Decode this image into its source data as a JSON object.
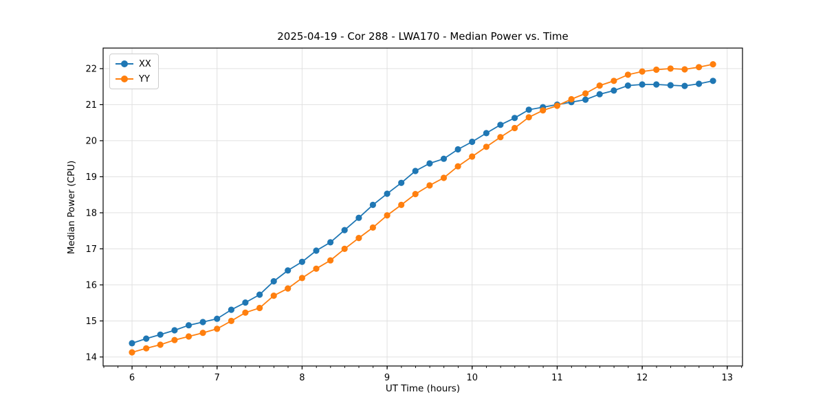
{
  "chart_data": {
    "type": "line",
    "title": "2025-04-19 - Cor 288 - LWA170 - Median Power vs. Time",
    "xlabel": "UT Time (hours)",
    "ylabel": "Median Power (CPU)",
    "xlim": [
      5.66,
      13.18
    ],
    "ylim": [
      13.75,
      22.57
    ],
    "xticks": [
      6,
      7,
      8,
      9,
      10,
      11,
      12,
      13
    ],
    "yticks": [
      14,
      15,
      16,
      17,
      18,
      19,
      20,
      21,
      22
    ],
    "x_minor_step": 0.1667,
    "grid": true,
    "legend_position": "upper left",
    "marker": "circle",
    "colors": {
      "grid": "#e0e0e0",
      "spine": "#000000",
      "tick_label": "#000000"
    },
    "x": [
      6.0,
      6.167,
      6.333,
      6.5,
      6.667,
      6.833,
      7.0,
      7.167,
      7.333,
      7.5,
      7.667,
      7.833,
      8.0,
      8.167,
      8.333,
      8.5,
      8.667,
      8.833,
      9.0,
      9.167,
      9.333,
      9.5,
      9.667,
      9.833,
      10.0,
      10.167,
      10.333,
      10.5,
      10.667,
      10.833,
      11.0,
      11.167,
      11.333,
      11.5,
      11.667,
      11.833,
      12.0,
      12.167,
      12.333,
      12.5,
      12.667,
      12.833
    ],
    "series": [
      {
        "name": "XX",
        "color": "#1f77b4",
        "values": [
          14.38,
          14.51,
          14.62,
          14.74,
          14.88,
          14.97,
          15.06,
          15.31,
          15.51,
          15.73,
          16.1,
          16.4,
          16.64,
          16.95,
          17.18,
          17.52,
          17.86,
          18.22,
          18.53,
          18.83,
          19.16,
          19.37,
          19.5,
          19.76,
          19.97,
          20.21,
          20.44,
          20.63,
          20.86,
          20.93,
          21.0,
          21.07,
          21.14,
          21.29,
          21.39,
          21.53,
          21.56,
          21.56,
          21.54,
          21.52,
          21.58,
          21.66
        ]
      },
      {
        "name": "YY",
        "color": "#ff7f0e",
        "values": [
          14.13,
          14.24,
          14.34,
          14.47,
          14.57,
          14.67,
          14.78,
          15.0,
          15.23,
          15.36,
          15.7,
          15.9,
          16.19,
          16.45,
          16.68,
          17.0,
          17.3,
          17.59,
          17.93,
          18.22,
          18.52,
          18.76,
          18.97,
          19.29,
          19.56,
          19.83,
          20.1,
          20.35,
          20.65,
          20.84,
          20.97,
          21.15,
          21.31,
          21.53,
          21.66,
          21.83,
          21.92,
          21.97,
          22.0,
          21.98,
          22.04,
          22.12
        ]
      }
    ]
  }
}
